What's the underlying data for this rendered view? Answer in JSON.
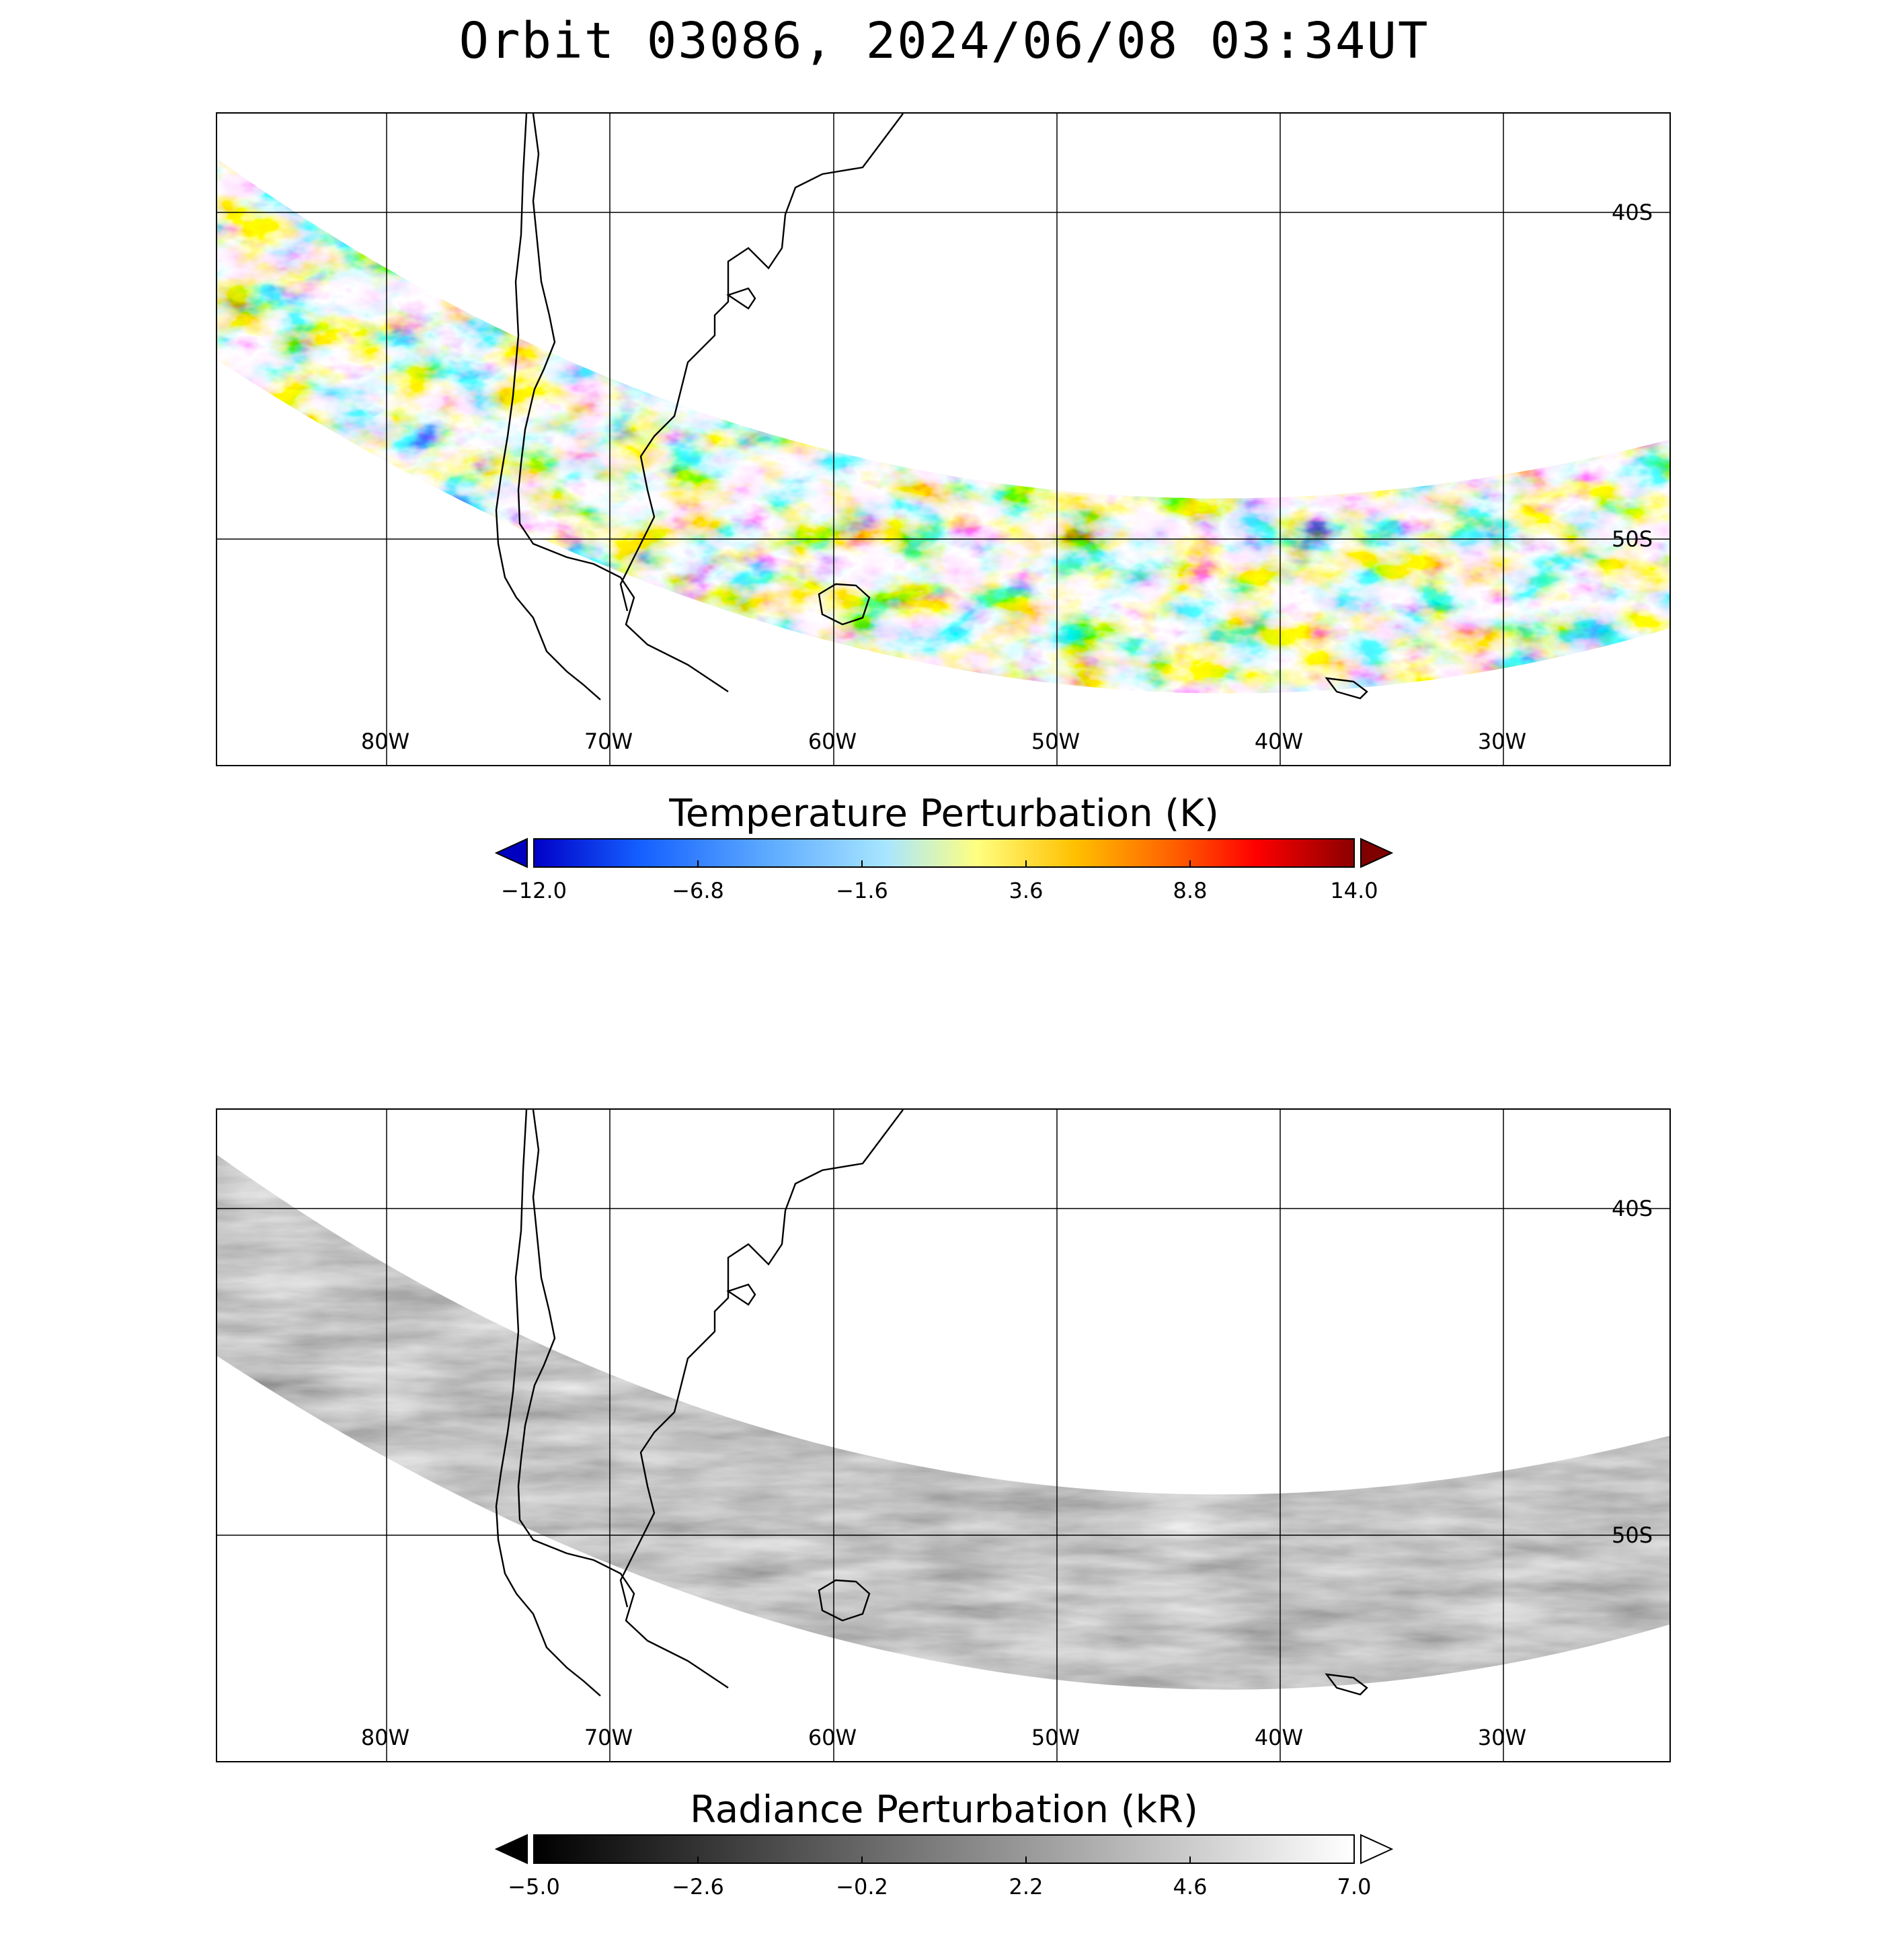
{
  "title": "Orbit 03086, 2024/06/08 03:34UT",
  "map": {
    "lon_labels": [
      "80W",
      "70W",
      "60W",
      "50W",
      "40W",
      "30W"
    ],
    "lat_labels": [
      "40S",
      "50S"
    ]
  },
  "panels": [
    {
      "colorbar_title": "Temperature Perturbation (K)",
      "ticks": [
        "−12.0",
        "−6.8",
        "−1.6",
        "3.6",
        "8.8",
        "14.0"
      ],
      "colormap": [
        "#0000c8",
        "#1560ff",
        "#5aa8ff",
        "#a8dcff",
        "#ffff80",
        "#ffc000",
        "#ff6000",
        "#ff0000",
        "#8b0000"
      ],
      "under_color": "#0000c0",
      "over_color": "#800000"
    },
    {
      "colorbar_title": "Radiance Perturbation (kR)",
      "ticks": [
        "−5.0",
        "−2.6",
        "−0.2",
        "2.2",
        "4.6",
        "7.0"
      ],
      "colormap": [
        "#000000",
        "#ffffff"
      ],
      "under_color": "#000000",
      "over_color": "#ffffff"
    }
  ]
}
